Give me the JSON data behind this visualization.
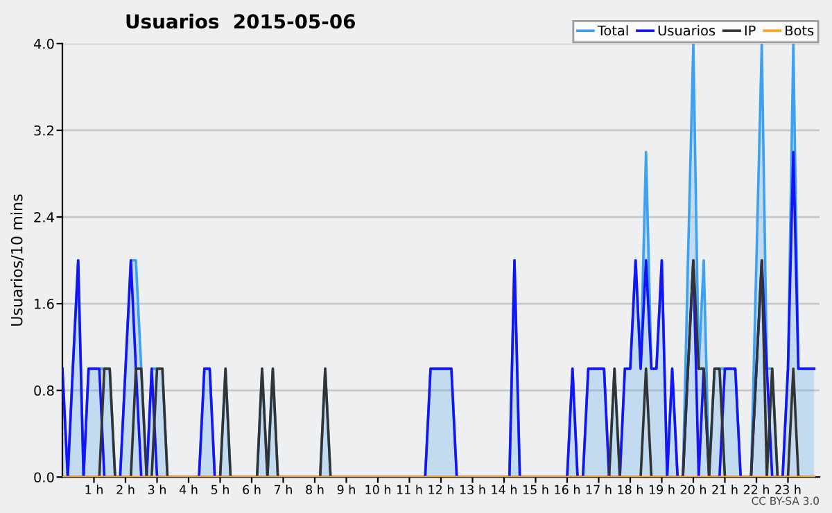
{
  "chart_data": {
    "type": "line",
    "title": "Usuarios  2015-05-06",
    "ylabel": "Usuarios/10 mins",
    "annotations": [
      "CC BY-SA 3.0"
    ],
    "x": [
      0,
      0.17,
      0.33,
      0.5,
      0.67,
      0.83,
      1,
      1.17,
      1.33,
      1.5,
      1.67,
      1.83,
      2,
      2.17,
      2.33,
      2.5,
      2.67,
      2.83,
      3,
      3.17,
      3.33,
      3.5,
      3.67,
      3.83,
      4,
      4.17,
      4.33,
      4.5,
      4.67,
      4.83,
      5,
      5.17,
      5.33,
      5.5,
      5.67,
      5.83,
      6,
      6.17,
      6.33,
      6.5,
      6.67,
      6.83,
      7,
      7.17,
      7.33,
      7.5,
      7.67,
      7.83,
      8,
      8.17,
      8.33,
      8.5,
      8.67,
      8.83,
      9,
      9.17,
      9.33,
      9.5,
      9.67,
      9.83,
      10,
      10.17,
      10.33,
      10.5,
      10.67,
      10.83,
      11,
      11.17,
      11.33,
      11.5,
      11.67,
      11.83,
      12,
      12.17,
      12.33,
      12.5,
      12.67,
      12.83,
      13,
      13.17,
      13.33,
      13.5,
      13.67,
      13.83,
      14,
      14.17,
      14.33,
      14.5,
      14.67,
      14.83,
      15,
      15.17,
      15.33,
      15.5,
      15.67,
      15.83,
      16,
      16.17,
      16.33,
      16.5,
      16.67,
      16.83,
      17,
      17.17,
      17.33,
      17.5,
      17.67,
      17.83,
      18,
      18.17,
      18.33,
      18.5,
      18.67,
      18.83,
      19,
      19.17,
      19.33,
      19.5,
      19.67,
      19.83,
      20,
      20.17,
      20.33,
      20.5,
      20.67,
      20.83,
      21,
      21.17,
      21.33,
      21.5,
      21.67,
      21.83,
      22,
      22.17,
      22.33,
      22.5,
      22.67,
      22.83,
      23,
      23.17,
      23.33,
      23.5,
      23.67,
      23.83
    ],
    "series": [
      {
        "name": "Total",
        "type": "area",
        "color": "#3ea0f0",
        "values": [
          1,
          0,
          1,
          2,
          0,
          1,
          1,
          1,
          1,
          1,
          0,
          0,
          1,
          2,
          2,
          1,
          0,
          1,
          1,
          1,
          0,
          0,
          0,
          0,
          0,
          0,
          0,
          1,
          1,
          0,
          0,
          1,
          0,
          0,
          0,
          0,
          0,
          0,
          1,
          0,
          1,
          0,
          0,
          0,
          0,
          0,
          0,
          0,
          0,
          0,
          1,
          0,
          0,
          0,
          0,
          0,
          0,
          0,
          0,
          0,
          0,
          0,
          0,
          0,
          0,
          0,
          0,
          0,
          0,
          0,
          1,
          1,
          1,
          1,
          1,
          0,
          0,
          0,
          0,
          0,
          0,
          0,
          0,
          0,
          0,
          0,
          2,
          0,
          0,
          0,
          0,
          0,
          0,
          0,
          0,
          0,
          0,
          1,
          0,
          0,
          1,
          1,
          1,
          1,
          0,
          1,
          0,
          1,
          1,
          2,
          1,
          3,
          1,
          1,
          2,
          0,
          1,
          0,
          0,
          2,
          4,
          1,
          2,
          0,
          1,
          1,
          1,
          1,
          1,
          0,
          0,
          0,
          2,
          4,
          1,
          1,
          0,
          0,
          1,
          4,
          1,
          1,
          1,
          1
        ]
      },
      {
        "name": "Usuarios",
        "color": "#1414f5",
        "values": [
          1,
          0,
          1,
          2,
          0,
          1,
          1,
          1,
          0,
          0,
          0,
          0,
          1,
          2,
          1,
          0,
          0,
          1,
          0,
          0,
          0,
          0,
          0,
          0,
          0,
          0,
          0,
          1,
          1,
          0,
          0,
          0,
          0,
          0,
          0,
          0,
          0,
          0,
          0,
          0,
          0,
          0,
          0,
          0,
          0,
          0,
          0,
          0,
          0,
          0,
          0,
          0,
          0,
          0,
          0,
          0,
          0,
          0,
          0,
          0,
          0,
          0,
          0,
          0,
          0,
          0,
          0,
          0,
          0,
          0,
          1,
          1,
          1,
          1,
          1,
          0,
          0,
          0,
          0,
          0,
          0,
          0,
          0,
          0,
          0,
          0,
          2,
          0,
          0,
          0,
          0,
          0,
          0,
          0,
          0,
          0,
          0,
          1,
          0,
          0,
          1,
          1,
          1,
          1,
          0,
          0,
          0,
          1,
          1,
          2,
          1,
          2,
          1,
          1,
          2,
          0,
          1,
          0,
          0,
          1,
          2,
          0,
          1,
          0,
          0,
          0,
          1,
          1,
          1,
          0,
          0,
          0,
          1,
          2,
          1,
          0,
          0,
          0,
          1,
          3,
          1,
          1,
          1,
          1
        ]
      },
      {
        "name": "IP",
        "color": "#333333",
        "values": [
          0,
          0,
          0,
          0,
          0,
          0,
          0,
          0,
          1,
          1,
          0,
          0,
          0,
          0,
          1,
          1,
          0,
          0,
          1,
          1,
          0,
          0,
          0,
          0,
          0,
          0,
          0,
          0,
          0,
          0,
          0,
          1,
          0,
          0,
          0,
          0,
          0,
          0,
          1,
          0,
          1,
          0,
          0,
          0,
          0,
          0,
          0,
          0,
          0,
          0,
          1,
          0,
          0,
          0,
          0,
          0,
          0,
          0,
          0,
          0,
          0,
          0,
          0,
          0,
          0,
          0,
          0,
          0,
          0,
          0,
          0,
          0,
          0,
          0,
          0,
          0,
          0,
          0,
          0,
          0,
          0,
          0,
          0,
          0,
          0,
          0,
          0,
          0,
          0,
          0,
          0,
          0,
          0,
          0,
          0,
          0,
          0,
          0,
          0,
          0,
          0,
          0,
          0,
          0,
          0,
          1,
          0,
          0,
          0,
          0,
          0,
          1,
          0,
          0,
          0,
          0,
          0,
          0,
          0,
          1,
          2,
          1,
          1,
          0,
          1,
          1,
          0,
          0,
          0,
          0,
          0,
          0,
          1,
          2,
          0,
          1,
          0,
          0,
          0,
          1,
          0,
          0,
          0,
          0
        ]
      },
      {
        "name": "Bots",
        "color": "#ffa020",
        "values": [
          0,
          0,
          0,
          0,
          0,
          0,
          0,
          0,
          0,
          0,
          0,
          0,
          0,
          0,
          0,
          0,
          0,
          0,
          0,
          0,
          0,
          0,
          0,
          0,
          0,
          0,
          0,
          0,
          0,
          0,
          0,
          0,
          0,
          0,
          0,
          0,
          0,
          0,
          0,
          0,
          0,
          0,
          0,
          0,
          0,
          0,
          0,
          0,
          0,
          0,
          0,
          0,
          0,
          0,
          0,
          0,
          0,
          0,
          0,
          0,
          0,
          0,
          0,
          0,
          0,
          0,
          0,
          0,
          0,
          0,
          0,
          0,
          0,
          0,
          0,
          0,
          0,
          0,
          0,
          0,
          0,
          0,
          0,
          0,
          0,
          0,
          0,
          0,
          0,
          0,
          0,
          0,
          0,
          0,
          0,
          0,
          0,
          0,
          0,
          0,
          0,
          0,
          0,
          0,
          0,
          0,
          0,
          0,
          0,
          0,
          0,
          0,
          0,
          0,
          0,
          0,
          0,
          0,
          0,
          0,
          0,
          0,
          0,
          0,
          0,
          0,
          0,
          0,
          0,
          0,
          0,
          0,
          0,
          0,
          0,
          0,
          0,
          0,
          0,
          0,
          0,
          0,
          0,
          0
        ]
      }
    ],
    "xlim": [
      0,
      24
    ],
    "xticks": [
      {
        "value": 1,
        "label": "1 h"
      },
      {
        "value": 2,
        "label": "2 h"
      },
      {
        "value": 3,
        "label": "3 h"
      },
      {
        "value": 4,
        "label": "4 h"
      },
      {
        "value": 5,
        "label": "5 h"
      },
      {
        "value": 6,
        "label": "6 h"
      },
      {
        "value": 7,
        "label": "7 h"
      },
      {
        "value": 8,
        "label": "8 h"
      },
      {
        "value": 9,
        "label": "9 h"
      },
      {
        "value": 10,
        "label": "10 h"
      },
      {
        "value": 11,
        "label": "11 h"
      },
      {
        "value": 12,
        "label": "12 h"
      },
      {
        "value": 13,
        "label": "13 h"
      },
      {
        "value": 14,
        "label": "14 h"
      },
      {
        "value": 15,
        "label": "15 h"
      },
      {
        "value": 16,
        "label": "16 h"
      },
      {
        "value": 17,
        "label": "17 h"
      },
      {
        "value": 18,
        "label": "18 h"
      },
      {
        "value": 19,
        "label": "19 h"
      },
      {
        "value": 20,
        "label": "20 h"
      },
      {
        "value": 21,
        "label": "21 h"
      },
      {
        "value": 22,
        "label": "22 h"
      },
      {
        "value": 23,
        "label": "23 h"
      }
    ],
    "ylim": [
      0,
      4
    ],
    "yticks": [
      {
        "value": 0,
        "label": "0.0"
      },
      {
        "value": 0.8,
        "label": "0.8"
      },
      {
        "value": 1.6,
        "label": "1.6"
      },
      {
        "value": 2.4,
        "label": "2.4"
      },
      {
        "value": 3.2,
        "label": "3.2"
      },
      {
        "value": 4,
        "label": "4.0"
      }
    ],
    "grid": "y",
    "legend": "top right",
    "line_style": "solid",
    "marker": "none"
  }
}
